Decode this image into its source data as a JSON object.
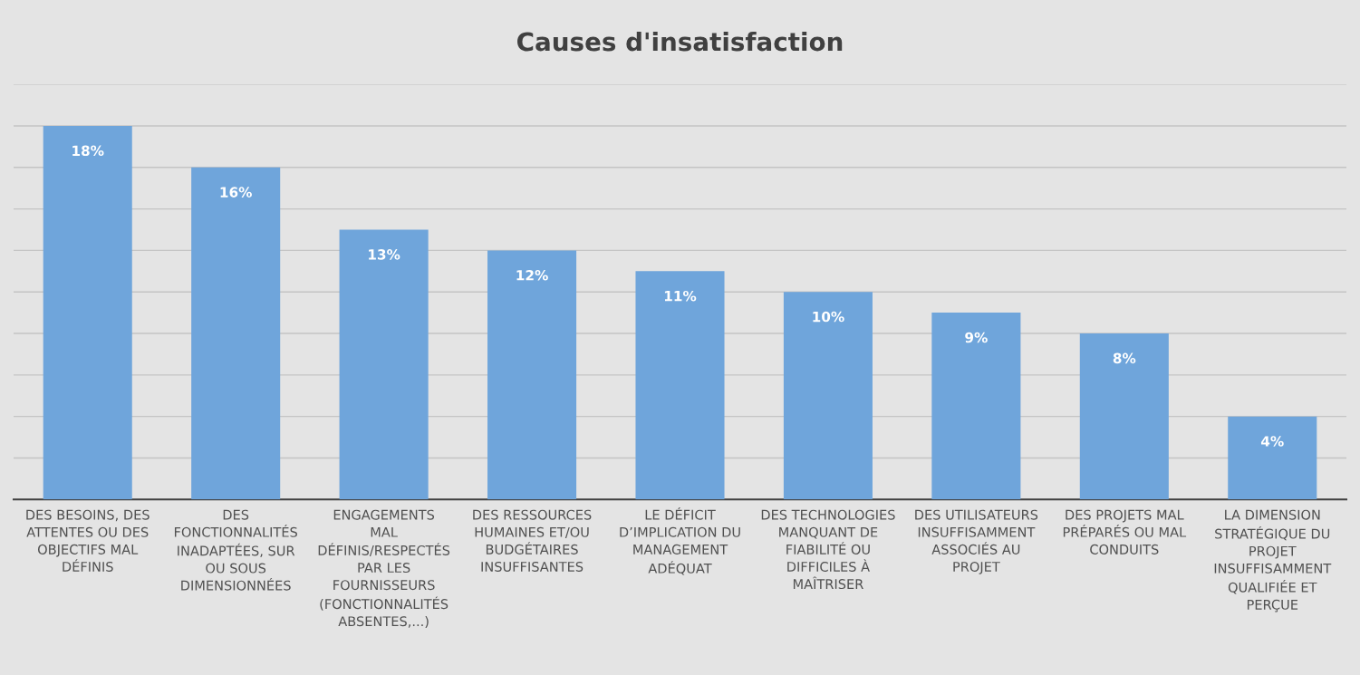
{
  "chart_data": {
    "type": "bar",
    "title": "Causes d'insatisfaction",
    "categories": [
      "DES BESOINS, DES\nATTENTES OU DES\nOBJECTIFS MAL\nDÉFINIS",
      "DES\nFONCTIONNALITÉS\nINADAPTÉES, SUR\nOU SOUS\nDIMENSIONNÉES",
      "ENGAGEMENTS\nMAL\nDÉFINIS/RESPECTÉS\nPAR LES\nFOURNISSEURS\n(FONCTIONNALITÉS\nABSENTES,...)",
      "DES RESSOURCES\nHUMAINES ET/OU\nBUDGÉTAIRES\nINSUFFISANTES",
      "LE DÉFICIT\nD’IMPLICATION DU\nMANAGEMENT\nADÉQUAT",
      "DES TECHNOLOGIES\nMANQUANT DE\nFIABILITÉ OU\nDIFFICILES À\nMAÎTRISER",
      "DES UTILISATEURS\nINSUFFISAMMENT\nASSOCIÉS AU\nPROJET",
      "DES PROJETS MAL\nPRÉPARÉS OU MAL\nCONDUITS",
      "LA DIMENSION\nSTRATÉGIQUE DU\nPROJET\nINSUFFISAMMENT\nQUALIFIÉE ET\nPERÇUE"
    ],
    "values": [
      18,
      16,
      13,
      12,
      11,
      10,
      9,
      8,
      4
    ],
    "value_labels": [
      "18%",
      "16%",
      "13%",
      "12%",
      "11%",
      "10%",
      "9%",
      "8%",
      "4%"
    ],
    "color": "#6fa5db",
    "ylim": [
      0,
      20
    ],
    "yticks": [
      {
        "value": 0,
        "label": null
      },
      {
        "value": 2,
        "label": null
      },
      {
        "value": 4,
        "label": null
      },
      {
        "value": 6,
        "label": null
      },
      {
        "value": 8,
        "label": null
      },
      {
        "value": 10,
        "label": null
      },
      {
        "value": 12,
        "label": null
      },
      {
        "value": 14,
        "label": null
      },
      {
        "value": 16,
        "label": null
      },
      {
        "value": 18,
        "label": null
      },
      {
        "value": 20,
        "label": null
      }
    ],
    "tick_labels": "x",
    "grid": "y",
    "legend": false
  }
}
